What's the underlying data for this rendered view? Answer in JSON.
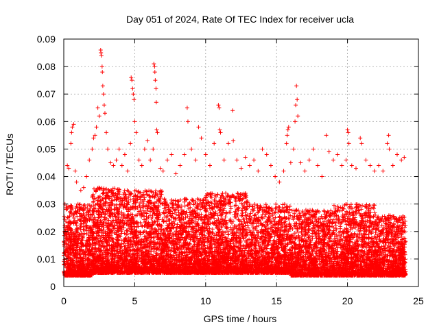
{
  "chart_data": {
    "type": "scatter",
    "title": "Day 051 of 2024, Rate Of TEC Index for receiver ucla",
    "xlabel": "GPS time / hours",
    "ylabel": "ROTI / TECUs",
    "xlim": [
      0,
      25
    ],
    "ylim": [
      0,
      0.09
    ],
    "xticks": [
      0,
      5,
      10,
      15,
      20,
      25
    ],
    "xtick_labels": [
      "0",
      "5",
      "10",
      "15",
      "20",
      "25"
    ],
    "yticks": [
      0,
      0.01,
      0.02,
      0.03,
      0.04,
      0.05,
      0.06,
      0.07,
      0.08,
      0.09
    ],
    "ytick_labels": [
      "0",
      "0.01",
      "0.02",
      "0.03",
      "0.04",
      "0.05",
      "0.06",
      "0.07",
      "0.08",
      "0.09"
    ],
    "grid": true,
    "marker": "plus",
    "color": "#ff0000",
    "series": [
      {
        "name": "ROTI",
        "points": [
          [
            0.05,
            0.012
          ],
          [
            0.15,
            0.018
          ],
          [
            0.25,
            0.044
          ],
          [
            0.3,
            0.025
          ],
          [
            0.35,
            0.043
          ],
          [
            0.5,
            0.052
          ],
          [
            0.55,
            0.056
          ],
          [
            0.6,
            0.058
          ],
          [
            0.7,
            0.059
          ],
          [
            0.8,
            0.042
          ],
          [
            0.9,
            0.038
          ],
          [
            1.0,
            0.03
          ],
          [
            1.2,
            0.035
          ],
          [
            1.4,
            0.036
          ],
          [
            1.6,
            0.04
          ],
          [
            1.8,
            0.046
          ],
          [
            2.0,
            0.05
          ],
          [
            2.1,
            0.054
          ],
          [
            2.2,
            0.055
          ],
          [
            2.3,
            0.058
          ],
          [
            2.4,
            0.065
          ],
          [
            2.5,
            0.062
          ],
          [
            2.6,
            0.086
          ],
          [
            2.62,
            0.085
          ],
          [
            2.65,
            0.084
          ],
          [
            2.7,
            0.08
          ],
          [
            2.72,
            0.078
          ],
          [
            2.75,
            0.073
          ],
          [
            2.8,
            0.07
          ],
          [
            2.85,
            0.066
          ],
          [
            2.9,
            0.063
          ],
          [
            3.0,
            0.056
          ],
          [
            3.1,
            0.05
          ],
          [
            3.3,
            0.045
          ],
          [
            3.5,
            0.044
          ],
          [
            3.7,
            0.046
          ],
          [
            3.9,
            0.05
          ],
          [
            4.1,
            0.044
          ],
          [
            4.3,
            0.048
          ],
          [
            4.5,
            0.042
          ],
          [
            4.7,
            0.052
          ],
          [
            4.75,
            0.076
          ],
          [
            4.8,
            0.075
          ],
          [
            4.85,
            0.072
          ],
          [
            4.9,
            0.07
          ],
          [
            4.95,
            0.068
          ],
          [
            5.0,
            0.06
          ],
          [
            5.1,
            0.056
          ],
          [
            5.3,
            0.046
          ],
          [
            5.5,
            0.044
          ],
          [
            5.7,
            0.05
          ],
          [
            5.9,
            0.053
          ],
          [
            6.1,
            0.046
          ],
          [
            6.3,
            0.05
          ],
          [
            6.35,
            0.081
          ],
          [
            6.4,
            0.08
          ],
          [
            6.42,
            0.078
          ],
          [
            6.45,
            0.075
          ],
          [
            6.5,
            0.072
          ],
          [
            6.52,
            0.067
          ],
          [
            6.55,
            0.057
          ],
          [
            6.6,
            0.056
          ],
          [
            6.8,
            0.043
          ],
          [
            7.0,
            0.042
          ],
          [
            7.3,
            0.046
          ],
          [
            7.6,
            0.048
          ],
          [
            7.9,
            0.041
          ],
          [
            8.2,
            0.044
          ],
          [
            8.5,
            0.048
          ],
          [
            8.7,
            0.065
          ],
          [
            8.75,
            0.06
          ],
          [
            9.0,
            0.05
          ],
          [
            9.3,
            0.046
          ],
          [
            9.5,
            0.058
          ],
          [
            9.7,
            0.054
          ],
          [
            10.0,
            0.048
          ],
          [
            10.3,
            0.044
          ],
          [
            10.6,
            0.052
          ],
          [
            10.9,
            0.066
          ],
          [
            10.95,
            0.065
          ],
          [
            11.0,
            0.057
          ],
          [
            11.05,
            0.056
          ],
          [
            11.3,
            0.046
          ],
          [
            11.6,
            0.052
          ],
          [
            11.9,
            0.064
          ],
          [
            11.95,
            0.053
          ],
          [
            12.2,
            0.046
          ],
          [
            12.5,
            0.043
          ],
          [
            12.8,
            0.047
          ],
          [
            13.1,
            0.044
          ],
          [
            13.4,
            0.046
          ],
          [
            13.7,
            0.042
          ],
          [
            14.0,
            0.05
          ],
          [
            14.3,
            0.048
          ],
          [
            14.6,
            0.044
          ],
          [
            14.9,
            0.04
          ],
          [
            15.2,
            0.038
          ],
          [
            15.5,
            0.042
          ],
          [
            15.7,
            0.052
          ],
          [
            15.75,
            0.055
          ],
          [
            15.8,
            0.057
          ],
          [
            15.85,
            0.058
          ],
          [
            16.0,
            0.045
          ],
          [
            16.2,
            0.05
          ],
          [
            16.3,
            0.06
          ],
          [
            16.35,
            0.066
          ],
          [
            16.4,
            0.073
          ],
          [
            16.45,
            0.068
          ],
          [
            16.5,
            0.062
          ],
          [
            16.7,
            0.045
          ],
          [
            17.0,
            0.042
          ],
          [
            17.3,
            0.046
          ],
          [
            17.6,
            0.05
          ],
          [
            17.9,
            0.044
          ],
          [
            18.2,
            0.04
          ],
          [
            18.5,
            0.055
          ],
          [
            18.7,
            0.049
          ],
          [
            19.0,
            0.046
          ],
          [
            19.3,
            0.048
          ],
          [
            19.6,
            0.044
          ],
          [
            19.9,
            0.046
          ],
          [
            20.0,
            0.057
          ],
          [
            20.05,
            0.056
          ],
          [
            20.1,
            0.052
          ],
          [
            20.3,
            0.044
          ],
          [
            20.6,
            0.043
          ],
          [
            20.9,
            0.054
          ],
          [
            21.0,
            0.052
          ],
          [
            21.3,
            0.046
          ],
          [
            21.6,
            0.044
          ],
          [
            21.9,
            0.042
          ],
          [
            22.2,
            0.044
          ],
          [
            22.5,
            0.042
          ],
          [
            22.8,
            0.052
          ],
          [
            22.9,
            0.055
          ],
          [
            22.95,
            0.05
          ],
          [
            23.2,
            0.044
          ],
          [
            23.5,
            0.048
          ],
          [
            23.8,
            0.046
          ],
          [
            24.0,
            0.047
          ]
        ],
        "dense_band": [
          {
            "x_range": [
              0,
              2
            ],
            "y_range": [
              0.004,
              0.03
            ],
            "count": 900
          },
          {
            "x_range": [
              2,
              4
            ],
            "y_range": [
              0.005,
              0.036
            ],
            "count": 1000
          },
          {
            "x_range": [
              4,
              7
            ],
            "y_range": [
              0.005,
              0.035
            ],
            "count": 1300
          },
          {
            "x_range": [
              7,
              10
            ],
            "y_range": [
              0.005,
              0.032
            ],
            "count": 1300
          },
          {
            "x_range": [
              10,
              13
            ],
            "y_range": [
              0.005,
              0.034
            ],
            "count": 1300
          },
          {
            "x_range": [
              13,
              16
            ],
            "y_range": [
              0.005,
              0.03
            ],
            "count": 1200
          },
          {
            "x_range": [
              16,
              19
            ],
            "y_range": [
              0.004,
              0.028
            ],
            "count": 1200
          },
          {
            "x_range": [
              19,
              22
            ],
            "y_range": [
              0.004,
              0.03
            ],
            "count": 1200
          },
          {
            "x_range": [
              22,
              24.1
            ],
            "y_range": [
              0.004,
              0.026
            ],
            "count": 900
          }
        ]
      }
    ]
  }
}
